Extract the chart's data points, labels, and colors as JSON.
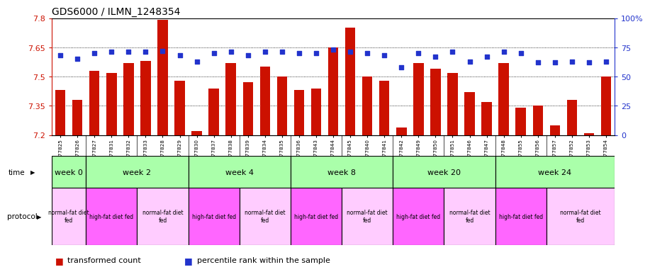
{
  "title": "GDS6000 / ILMN_1248354",
  "samples": [
    "GSM1577825",
    "GSM1577826",
    "GSM1577827",
    "GSM1577831",
    "GSM1577832",
    "GSM1577833",
    "GSM1577828",
    "GSM1577829",
    "GSM1577830",
    "GSM1577837",
    "GSM1577838",
    "GSM1577839",
    "GSM1577834",
    "GSM1577835",
    "GSM1577836",
    "GSM1577843",
    "GSM1577844",
    "GSM1577845",
    "GSM1577840",
    "GSM1577841",
    "GSM1577842",
    "GSM1577849",
    "GSM1577850",
    "GSM1577851",
    "GSM1577846",
    "GSM1577847",
    "GSM1577848",
    "GSM1577855",
    "GSM1577856",
    "GSM1577857",
    "GSM1577852",
    "GSM1577853",
    "GSM1577854"
  ],
  "bar_values": [
    7.43,
    7.38,
    7.53,
    7.52,
    7.57,
    7.58,
    7.79,
    7.48,
    7.22,
    7.44,
    7.57,
    7.47,
    7.55,
    7.5,
    7.43,
    7.44,
    7.65,
    7.75,
    7.5,
    7.48,
    7.24,
    7.57,
    7.54,
    7.52,
    7.42,
    7.37,
    7.57,
    7.34,
    7.35,
    7.25,
    7.38,
    7.21,
    7.5
  ],
  "percentile_values": [
    68,
    65,
    70,
    71,
    71,
    71,
    72,
    68,
    63,
    70,
    71,
    68,
    71,
    71,
    70,
    70,
    73,
    71,
    70,
    68,
    58,
    70,
    67,
    71,
    63,
    67,
    71,
    70,
    62,
    62,
    63,
    62,
    63
  ],
  "ylim_left": [
    7.2,
    7.8
  ],
  "ylim_right": [
    0,
    100
  ],
  "yticks_left": [
    7.2,
    7.35,
    7.5,
    7.65,
    7.8
  ],
  "yticks_right": [
    0,
    25,
    50,
    75,
    100
  ],
  "bar_color": "#cc1100",
  "dot_color": "#2233cc",
  "week_spans": [
    {
      "label": "week 0",
      "start": 0,
      "end": 2
    },
    {
      "label": "week 2",
      "start": 2,
      "end": 8
    },
    {
      "label": "week 4",
      "start": 8,
      "end": 14
    },
    {
      "label": "week 8",
      "start": 14,
      "end": 20
    },
    {
      "label": "week 20",
      "start": 20,
      "end": 26
    },
    {
      "label": "week 24",
      "start": 26,
      "end": 33
    }
  ],
  "protocol_groups": [
    {
      "label": "normal-fat diet\nfed",
      "start": 0,
      "end": 2,
      "color": "#ffccff"
    },
    {
      "label": "high-fat diet fed",
      "start": 2,
      "end": 5,
      "color": "#ff66ff"
    },
    {
      "label": "normal-fat diet\nfed",
      "start": 5,
      "end": 8,
      "color": "#ffccff"
    },
    {
      "label": "high-fat diet fed",
      "start": 8,
      "end": 11,
      "color": "#ff66ff"
    },
    {
      "label": "normal-fat diet\nfed",
      "start": 11,
      "end": 14,
      "color": "#ffccff"
    },
    {
      "label": "high-fat diet fed",
      "start": 14,
      "end": 17,
      "color": "#ff66ff"
    },
    {
      "label": "normal-fat diet\nfed",
      "start": 17,
      "end": 20,
      "color": "#ffccff"
    },
    {
      "label": "high-fat diet fed",
      "start": 20,
      "end": 23,
      "color": "#ff66ff"
    },
    {
      "label": "normal-fat diet\nfed",
      "start": 23,
      "end": 26,
      "color": "#ffccff"
    },
    {
      "label": "high-fat diet fed",
      "start": 26,
      "end": 29,
      "color": "#ff66ff"
    },
    {
      "label": "normal-fat diet\nfed",
      "start": 29,
      "end": 33,
      "color": "#ffccff"
    }
  ],
  "time_color": "#aaffaa",
  "bar_bottom": 7.2,
  "n_samples": 33
}
